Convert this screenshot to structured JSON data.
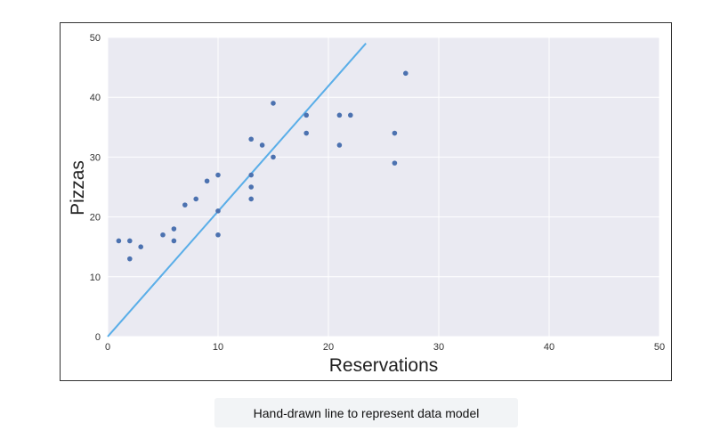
{
  "caption": "Hand-drawn line to represent data model",
  "colors": {
    "plot_background": "#eaeaf2",
    "grid": "#ffffff",
    "points": "#4c72b0",
    "model_line": "#5aaee8"
  },
  "chart_data": {
    "type": "scatter",
    "xlabel": "Reservations",
    "ylabel": "Pizzas",
    "xlim": [
      0,
      50
    ],
    "ylim": [
      0,
      50
    ],
    "xticks": [
      0,
      10,
      20,
      30,
      40,
      50
    ],
    "yticks": [
      0,
      10,
      20,
      30,
      40,
      50
    ],
    "grid": true,
    "points": [
      {
        "x": 1,
        "y": 16
      },
      {
        "x": 2,
        "y": 16
      },
      {
        "x": 2,
        "y": 13
      },
      {
        "x": 3,
        "y": 15
      },
      {
        "x": 5,
        "y": 17
      },
      {
        "x": 6,
        "y": 18
      },
      {
        "x": 6,
        "y": 16
      },
      {
        "x": 7,
        "y": 22
      },
      {
        "x": 8,
        "y": 23
      },
      {
        "x": 9,
        "y": 26
      },
      {
        "x": 10,
        "y": 27
      },
      {
        "x": 10,
        "y": 21
      },
      {
        "x": 10,
        "y": 17
      },
      {
        "x": 13,
        "y": 33
      },
      {
        "x": 13,
        "y": 27
      },
      {
        "x": 13,
        "y": 25
      },
      {
        "x": 13,
        "y": 23
      },
      {
        "x": 14,
        "y": 32
      },
      {
        "x": 15,
        "y": 39
      },
      {
        "x": 15,
        "y": 30
      },
      {
        "x": 18,
        "y": 37
      },
      {
        "x": 18,
        "y": 34
      },
      {
        "x": 21,
        "y": 37
      },
      {
        "x": 21,
        "y": 32
      },
      {
        "x": 22,
        "y": 37
      },
      {
        "x": 26,
        "y": 34
      },
      {
        "x": 26,
        "y": 29
      },
      {
        "x": 27,
        "y": 44
      }
    ],
    "model_line": {
      "x": [
        0,
        23.4
      ],
      "y": [
        0,
        49
      ]
    }
  }
}
